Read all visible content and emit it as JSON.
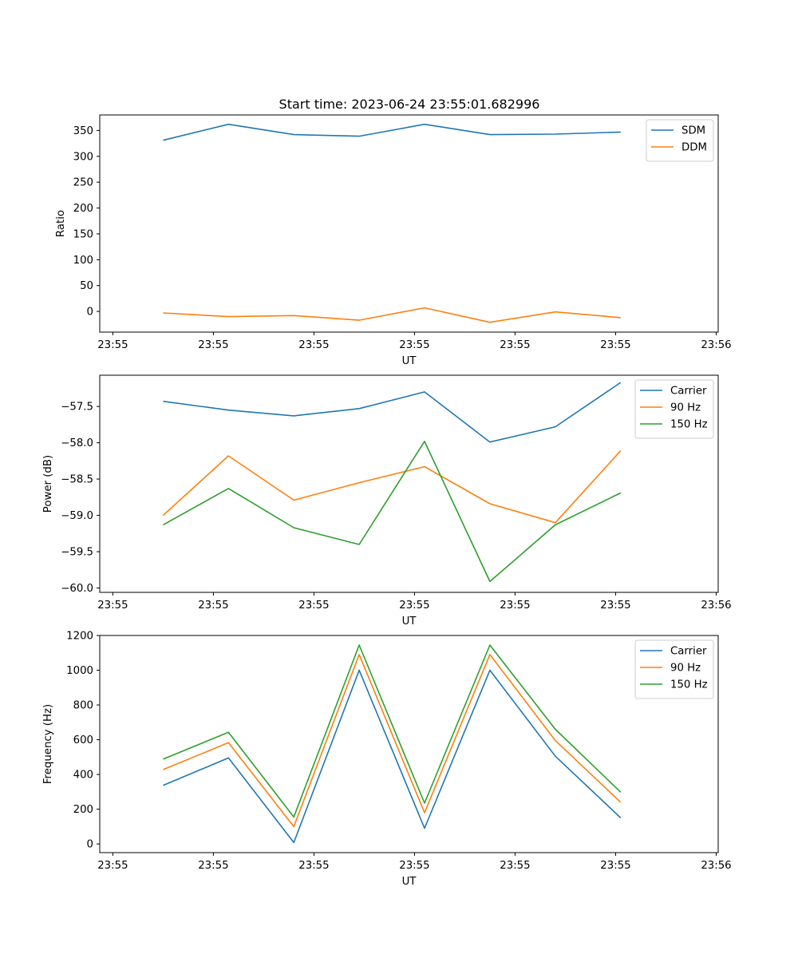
{
  "figure": {
    "title": "Start time: 2023-06-24 23:55:01.682996"
  },
  "chart_data": [
    {
      "type": "line",
      "title": "Start time: 2023-06-24 23:55:01.682996",
      "xlabel": "UT",
      "ylabel": "Ratio",
      "x_tick_labels": [
        "23:55",
        "23:55",
        "23:55",
        "23:55",
        "23:55",
        "23:55",
        "23:56"
      ],
      "x_ticks": [
        0,
        1,
        2,
        3,
        4,
        5,
        6
      ],
      "x": [
        0.5,
        1.15,
        1.8,
        2.45,
        3.1,
        3.75,
        4.4,
        5.05
      ],
      "xlim": [
        -0.13,
        6.02
      ],
      "ylim": [
        -40,
        380
      ],
      "y_ticks": [
        0,
        50,
        100,
        150,
        200,
        250,
        300,
        350
      ],
      "legend_position": "upper right",
      "series": [
        {
          "name": "SDM",
          "color": "#1f77b4",
          "values": [
            331,
            362,
            342,
            339,
            362,
            342,
            343,
            347
          ]
        },
        {
          "name": "DDM",
          "color": "#ff7f0e",
          "values": [
            -3,
            -10,
            -8,
            -17,
            7,
            -21,
            -1,
            -12
          ]
        }
      ]
    },
    {
      "type": "line",
      "title": "",
      "xlabel": "UT",
      "ylabel": "Power (dB)",
      "x_tick_labels": [
        "23:55",
        "23:55",
        "23:55",
        "23:55",
        "23:55",
        "23:55",
        "23:56"
      ],
      "x_ticks": [
        0,
        1,
        2,
        3,
        4,
        5,
        6
      ],
      "x": [
        0.5,
        1.15,
        1.8,
        2.45,
        3.1,
        3.75,
        4.4,
        5.05
      ],
      "xlim": [
        -0.13,
        6.02
      ],
      "ylim": [
        -60.06,
        -57.07
      ],
      "y_ticks": [
        -57.5,
        -58.0,
        -58.5,
        -59.0,
        -59.5,
        -60.0
      ],
      "y_tick_labels": [
        "−57.5",
        "−58.0",
        "−58.5",
        "−59.0",
        "−59.5",
        "−60.0"
      ],
      "legend_position": "upper right",
      "series": [
        {
          "name": "Carrier",
          "color": "#1f77b4",
          "values": [
            -57.43,
            -57.55,
            -57.63,
            -57.53,
            -57.3,
            -57.99,
            -57.78,
            -57.17
          ]
        },
        {
          "name": "90 Hz",
          "color": "#ff7f0e",
          "values": [
            -59.0,
            -58.18,
            -58.79,
            -58.55,
            -58.33,
            -58.84,
            -59.1,
            -58.11
          ]
        },
        {
          "name": "150 Hz",
          "color": "#2ca02c",
          "values": [
            -59.13,
            -58.63,
            -59.17,
            -59.4,
            -57.98,
            -59.91,
            -59.13,
            -58.69
          ]
        }
      ]
    },
    {
      "type": "line",
      "title": "",
      "xlabel": "UT",
      "ylabel": "Frequency (Hz)",
      "x_tick_labels": [
        "23:55",
        "23:55",
        "23:55",
        "23:55",
        "23:55",
        "23:55",
        "23:56"
      ],
      "x_ticks": [
        0,
        1,
        2,
        3,
        4,
        5,
        6
      ],
      "x": [
        0.5,
        1.15,
        1.8,
        2.45,
        3.1,
        3.75,
        4.4,
        5.05
      ],
      "xlim": [
        -0.13,
        6.02
      ],
      "ylim": [
        -50,
        1200
      ],
      "y_ticks": [
        0,
        200,
        400,
        600,
        800,
        1000,
        1200
      ],
      "legend_position": "upper right",
      "series": [
        {
          "name": "Carrier",
          "color": "#1f77b4",
          "values": [
            337,
            495,
            8,
            1000,
            90,
            1000,
            505,
            150
          ]
        },
        {
          "name": "90 Hz",
          "color": "#ff7f0e",
          "values": [
            428,
            583,
            100,
            1090,
            180,
            1090,
            595,
            240
          ]
        },
        {
          "name": "150 Hz",
          "color": "#2ca02c",
          "values": [
            488,
            643,
            155,
            1145,
            235,
            1145,
            660,
            298
          ]
        }
      ]
    }
  ]
}
